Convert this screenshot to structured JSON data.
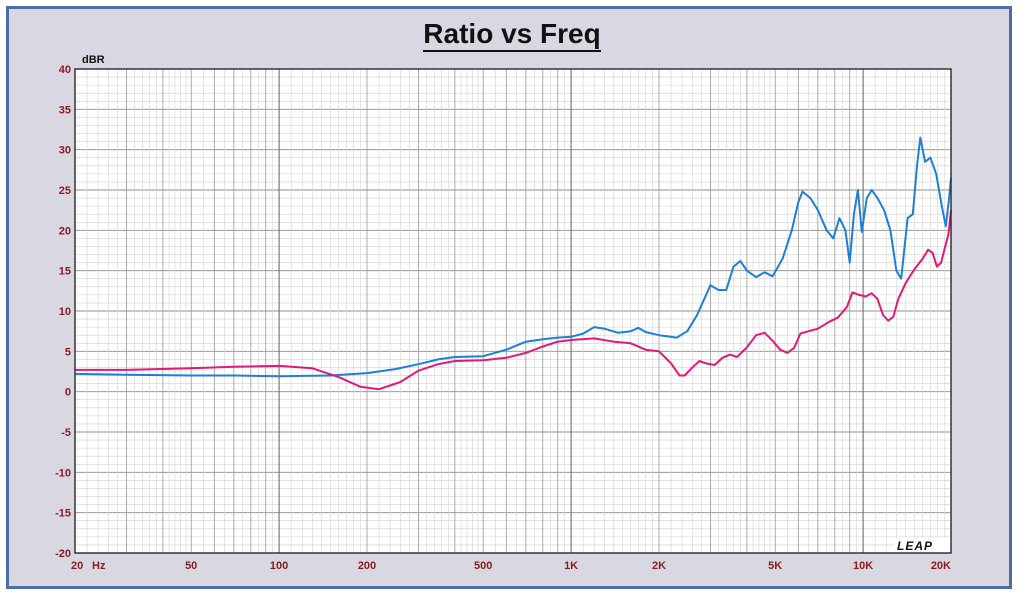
{
  "chart_data": {
    "type": "line",
    "title": "Ratio vs Freq",
    "ylabel": "dBR",
    "x_unit": "Hz",
    "xscale": "log",
    "xlim": [
      20,
      20000
    ],
    "ylim": [
      -20,
      40
    ],
    "y_ticks": [
      40,
      35,
      30,
      25,
      20,
      15,
      10,
      5,
      0,
      -5,
      -10,
      -15,
      -20
    ],
    "x_ticks": [
      {
        "value": 20,
        "label": "20"
      },
      {
        "value": 50,
        "label": "50"
      },
      {
        "value": 100,
        "label": "100"
      },
      {
        "value": 200,
        "label": "200"
      },
      {
        "value": 500,
        "label": "500"
      },
      {
        "value": 1000,
        "label": "1K"
      },
      {
        "value": 2000,
        "label": "2K"
      },
      {
        "value": 5000,
        "label": "5K"
      },
      {
        "value": 10000,
        "label": "10K"
      },
      {
        "value": 20000,
        "label": "20K"
      }
    ],
    "grid": true,
    "watermark": "LEAP",
    "series": [
      {
        "color": "#1e7fd8",
        "points": [
          [
            20,
            2.2
          ],
          [
            30,
            2.1
          ],
          [
            50,
            2.0
          ],
          [
            70,
            2.0
          ],
          [
            100,
            1.9
          ],
          [
            150,
            2.0
          ],
          [
            200,
            2.3
          ],
          [
            250,
            2.8
          ],
          [
            300,
            3.4
          ],
          [
            350,
            4.0
          ],
          [
            400,
            4.3
          ],
          [
            500,
            4.4
          ],
          [
            600,
            5.2
          ],
          [
            700,
            6.2
          ],
          [
            800,
            6.5
          ],
          [
            900,
            6.7
          ],
          [
            1000,
            6.8
          ],
          [
            1100,
            7.2
          ],
          [
            1200,
            8.0
          ],
          [
            1300,
            7.8
          ],
          [
            1450,
            7.3
          ],
          [
            1600,
            7.5
          ],
          [
            1700,
            7.9
          ],
          [
            1800,
            7.4
          ],
          [
            2000,
            7.0
          ],
          [
            2300,
            6.7
          ],
          [
            2500,
            7.5
          ],
          [
            2700,
            9.5
          ],
          [
            2900,
            12.0
          ],
          [
            3000,
            13.2
          ],
          [
            3200,
            12.6
          ],
          [
            3400,
            12.6
          ],
          [
            3600,
            15.5
          ],
          [
            3800,
            16.2
          ],
          [
            4000,
            15.0
          ],
          [
            4300,
            14.2
          ],
          [
            4600,
            14.8
          ],
          [
            4900,
            14.3
          ],
          [
            5300,
            16.5
          ],
          [
            5700,
            20.0
          ],
          [
            6000,
            23.5
          ],
          [
            6200,
            24.8
          ],
          [
            6600,
            24.0
          ],
          [
            7000,
            22.5
          ],
          [
            7500,
            20.0
          ],
          [
            7900,
            19.0
          ],
          [
            8300,
            21.5
          ],
          [
            8700,
            20.0
          ],
          [
            9000,
            16.0
          ],
          [
            9300,
            22.0
          ],
          [
            9600,
            25.0
          ],
          [
            9900,
            19.8
          ],
          [
            10300,
            24.0
          ],
          [
            10700,
            25.0
          ],
          [
            11200,
            24.0
          ],
          [
            11800,
            22.5
          ],
          [
            12400,
            20.0
          ],
          [
            13000,
            15.0
          ],
          [
            13500,
            14.0
          ],
          [
            14200,
            21.5
          ],
          [
            14800,
            22.0
          ],
          [
            15300,
            28.0
          ],
          [
            15700,
            31.5
          ],
          [
            16300,
            28.5
          ],
          [
            17000,
            29.0
          ],
          [
            17800,
            27.0
          ],
          [
            18600,
            23.0
          ],
          [
            19200,
            20.5
          ],
          [
            19700,
            24.0
          ],
          [
            20000,
            26.5
          ]
        ]
      },
      {
        "color": "#e0197a",
        "points": [
          [
            20,
            2.7
          ],
          [
            30,
            2.7
          ],
          [
            50,
            2.9
          ],
          [
            70,
            3.1
          ],
          [
            100,
            3.2
          ],
          [
            130,
            2.9
          ],
          [
            160,
            1.8
          ],
          [
            190,
            0.6
          ],
          [
            220,
            0.3
          ],
          [
            260,
            1.2
          ],
          [
            300,
            2.6
          ],
          [
            350,
            3.4
          ],
          [
            400,
            3.8
          ],
          [
            500,
            3.9
          ],
          [
            600,
            4.2
          ],
          [
            700,
            4.8
          ],
          [
            800,
            5.6
          ],
          [
            900,
            6.2
          ],
          [
            1000,
            6.4
          ],
          [
            1200,
            6.6
          ],
          [
            1400,
            6.2
          ],
          [
            1600,
            6.0
          ],
          [
            1800,
            5.2
          ],
          [
            2000,
            5.0
          ],
          [
            2200,
            3.5
          ],
          [
            2350,
            2.0
          ],
          [
            2450,
            2.0
          ],
          [
            2600,
            3.0
          ],
          [
            2750,
            3.8
          ],
          [
            2900,
            3.5
          ],
          [
            3100,
            3.3
          ],
          [
            3300,
            4.2
          ],
          [
            3500,
            4.6
          ],
          [
            3700,
            4.3
          ],
          [
            4000,
            5.5
          ],
          [
            4300,
            7.0
          ],
          [
            4600,
            7.3
          ],
          [
            4900,
            6.3
          ],
          [
            5200,
            5.2
          ],
          [
            5500,
            4.8
          ],
          [
            5800,
            5.4
          ],
          [
            6100,
            7.2
          ],
          [
            6500,
            7.5
          ],
          [
            7000,
            7.8
          ],
          [
            7600,
            8.6
          ],
          [
            8200,
            9.2
          ],
          [
            8800,
            10.5
          ],
          [
            9200,
            12.3
          ],
          [
            9700,
            12.0
          ],
          [
            10200,
            11.8
          ],
          [
            10700,
            12.2
          ],
          [
            11200,
            11.5
          ],
          [
            11700,
            9.5
          ],
          [
            12200,
            8.8
          ],
          [
            12700,
            9.3
          ],
          [
            13200,
            11.5
          ],
          [
            14000,
            13.5
          ],
          [
            15000,
            15.2
          ],
          [
            16000,
            16.5
          ],
          [
            16700,
            17.6
          ],
          [
            17300,
            17.2
          ],
          [
            17900,
            15.5
          ],
          [
            18500,
            16.0
          ],
          [
            19100,
            18.0
          ],
          [
            19600,
            19.5
          ],
          [
            20000,
            22.5
          ]
        ]
      }
    ]
  }
}
